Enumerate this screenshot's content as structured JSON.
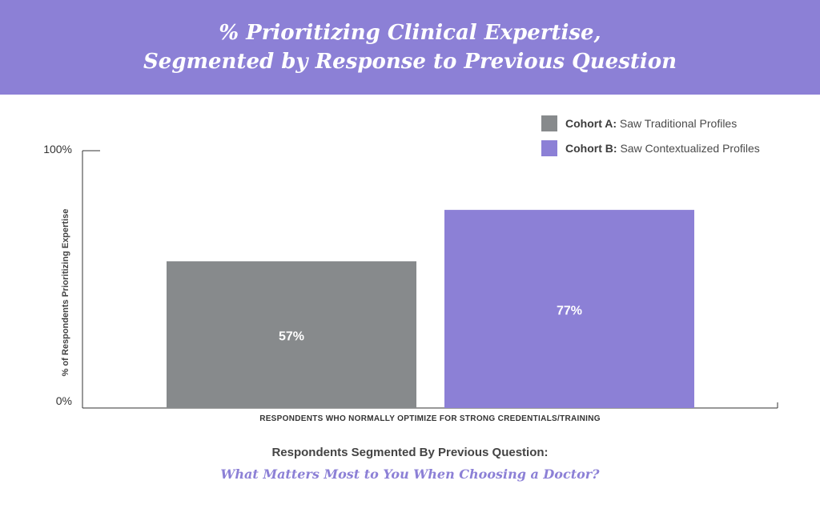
{
  "header": {
    "line1": "% Prioritizing Clinical Expertise,",
    "line2": "Segmented by Response to Previous Question"
  },
  "legend": [
    {
      "label": "Cohort A:",
      "desc": "Saw Traditional Profiles",
      "color": "#878a8c"
    },
    {
      "label": "Cohort B:",
      "desc": "Saw Contextualized Profiles",
      "color": "#8c80d6"
    }
  ],
  "footer": {
    "line1": "Respondents Segmented By Previous Question:",
    "line2": "What Matters Most to You When Choosing a Doctor?"
  },
  "chart_data": {
    "type": "bar",
    "categories": [
      "RESPONDENTS WHO NORMALLY OPTIMIZE FOR STRONG CREDENTIALS/TRAINING"
    ],
    "series": [
      {
        "name": "Cohort A: Saw Traditional Profiles",
        "values": [
          57
        ],
        "color": "#878a8c"
      },
      {
        "name": "Cohort B: Saw Contextualized Profiles",
        "values": [
          77
        ],
        "color": "#8c80d6"
      }
    ],
    "data_labels": [
      "57%",
      "77%"
    ],
    "ylabel": "% of Respondents Prioritizing Expertise",
    "yticks": [
      "0%",
      "100%"
    ],
    "ylim": [
      0,
      100
    ],
    "legend_position": "top-right",
    "grid": false
  }
}
